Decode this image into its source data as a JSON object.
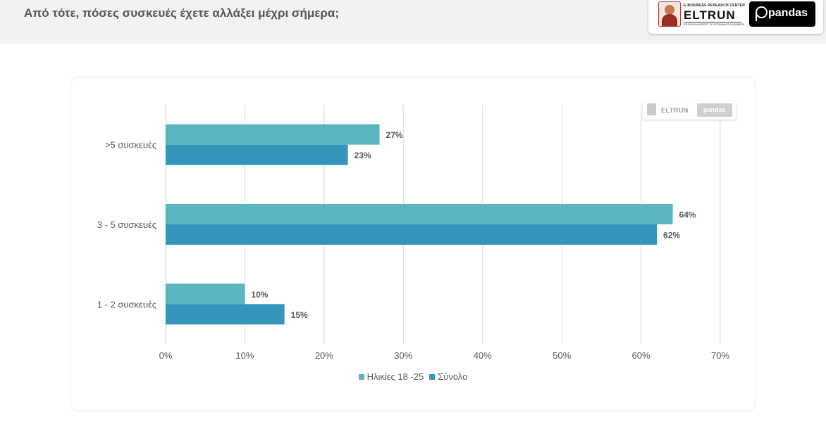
{
  "header": {
    "question": "Από τότε, πόσες συσκευές έχετε αλλάξει μέχρι σήμερα;"
  },
  "logos": {
    "eltrun_top": "E-BUSINESS RESEARCH CENTER",
    "eltrun_word": "ELTRUN",
    "eltrun_bottom": "ATHENS UNIVERSITY OF ECONOMICS & BUSINESS",
    "pandas_word": "pandas",
    "seal_icon": "university-seal-icon",
    "pandas_icon": "pandas-p-icon"
  },
  "chart_data": {
    "type": "bar",
    "orientation": "horizontal",
    "categories": [
      ">5 συσκευές",
      "3 - 5 συσκευές",
      "1 - 2 συσκευές"
    ],
    "series": [
      {
        "name": "Ηλικίες 18 -25",
        "values": [
          27,
          64,
          10
        ],
        "labels": [
          "27%",
          "64%",
          "10%"
        ],
        "color": "#5bb5c1"
      },
      {
        "name": "Σύνολο",
        "values": [
          23,
          62,
          15
        ],
        "labels": [
          "23%",
          "62%",
          "15%"
        ],
        "color": "#3496bc"
      }
    ],
    "xlim": [
      0,
      70
    ],
    "xticks": [
      0,
      10,
      20,
      30,
      40,
      50,
      60,
      70
    ],
    "xtick_labels": [
      "0%",
      "10%",
      "20%",
      "30%",
      "40%",
      "50%",
      "60%",
      "70%"
    ],
    "grid": true,
    "legend": "bottom-center"
  }
}
